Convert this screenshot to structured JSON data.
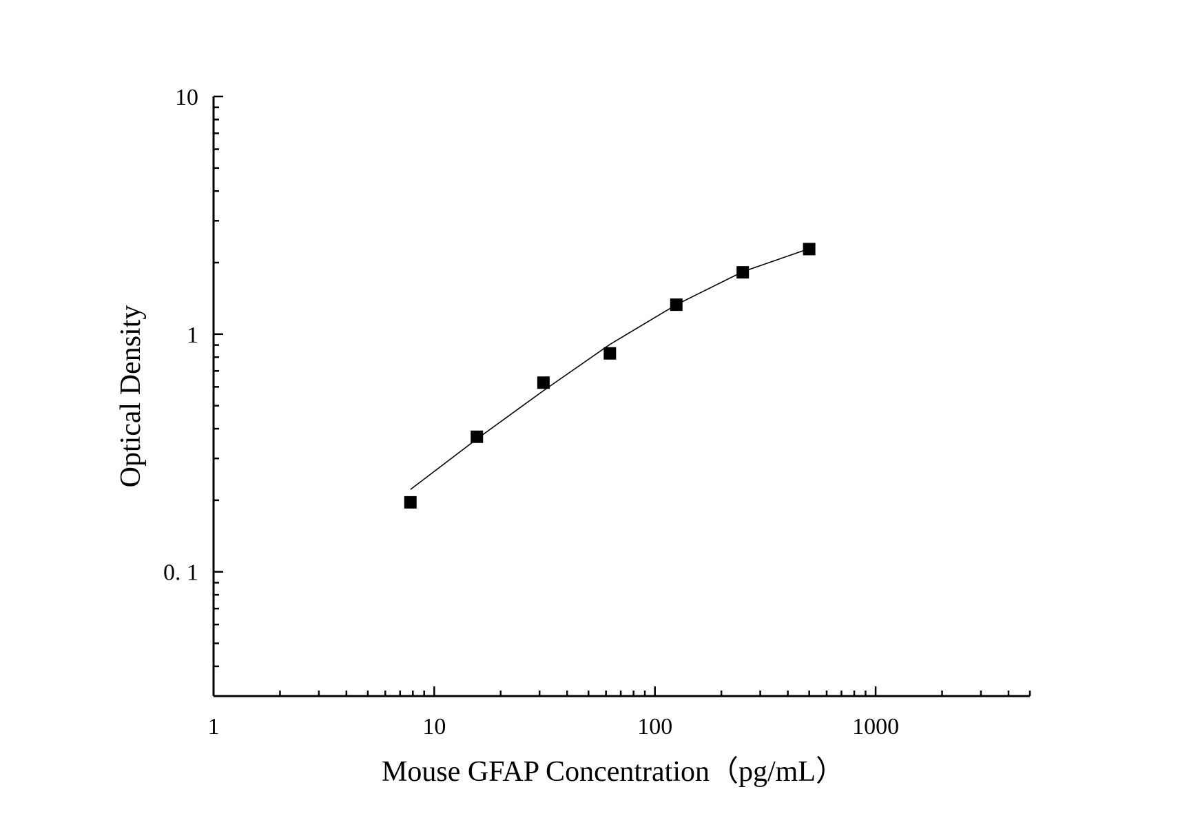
{
  "chart_data": {
    "type": "scatter",
    "title": "",
    "xlabel": "Mouse GFAP Concentration（pg/mL）",
    "ylabel": "Optical Density",
    "x_scale": "log",
    "y_scale": "log",
    "xlim": [
      1,
      5000
    ],
    "ylim": [
      0.03,
      10
    ],
    "x_ticks": [
      {
        "value": 1,
        "label": "1"
      },
      {
        "value": 10,
        "label": "10"
      },
      {
        "value": 100,
        "label": "100"
      },
      {
        "value": 1000,
        "label": "1000"
      }
    ],
    "y_ticks": [
      {
        "value": 0.1,
        "label": "0. 1"
      },
      {
        "value": 1,
        "label": "1"
      },
      {
        "value": 10,
        "label": "10"
      }
    ],
    "grid": false,
    "legend": "none",
    "marker": "square",
    "colors": {
      "marker": "#000000",
      "curve": "#000000",
      "axis": "#000000"
    },
    "series": [
      {
        "x": [
          7.8,
          15.6,
          31.25,
          62.5,
          125,
          250,
          500
        ],
        "y": [
          0.196,
          0.37,
          0.625,
          0.83,
          1.33,
          1.82,
          2.28
        ]
      }
    ],
    "fit_curve": {
      "x": [
        7.8,
        15.6,
        31.25,
        62.5,
        125,
        250,
        500
      ],
      "y": [
        0.222,
        0.362,
        0.578,
        0.905,
        1.33,
        1.83,
        2.29
      ]
    }
  }
}
